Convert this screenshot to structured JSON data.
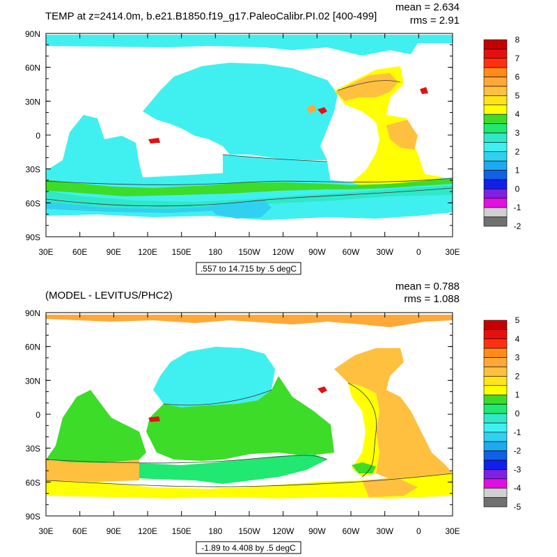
{
  "panels": [
    {
      "title": "TEMP at z=2414.0m, b.e21.B1850.f19_g17.PaleoCalibr.PI.02 [400-499]",
      "mean_text": "mean = 2.634",
      "rms_text": "rms = 2.91",
      "range_label": ".557 to 14.715 by .5 degC",
      "lat_labels": [
        "90N",
        "60N",
        "30N",
        "0",
        "30S",
        "60S",
        "90S"
      ],
      "lon_labels": [
        "30E",
        "60E",
        "90E",
        "120E",
        "150E",
        "180",
        "150W",
        "120W",
        "90W",
        "60W",
        "30W",
        "0",
        "30E"
      ],
      "colorbar_labels": [
        "8",
        "7",
        "6",
        "5",
        "4",
        "3",
        "2",
        "1",
        "0",
        "-1",
        "-2"
      ],
      "colorbar_colors": [
        "#c40000",
        "#e41010",
        "#ff3010",
        "#ff8c18",
        "#ffa838",
        "#ffc040",
        "#ffe41c",
        "#ffff00",
        "#3cdc28",
        "#20e870",
        "#30e8c8",
        "#40f0f0",
        "#30d0f0",
        "#20a8f0",
        "#1060e8",
        "#1020e8",
        "#8020e0",
        "#e010e0",
        "#d0d0d0",
        "#707070"
      ]
    },
    {
      "title": "(MODEL - LEVITUS/PHC2)",
      "mean_text": "mean = 0.788",
      "rms_text": "rms = 1.088",
      "range_label": "-1.89 to 4.408 by .5 degC",
      "lat_labels": [
        "90N",
        "60N",
        "30N",
        "0",
        "30S",
        "60S",
        "90S"
      ],
      "lon_labels": [
        "30E",
        "60E",
        "90E",
        "120E",
        "150E",
        "180",
        "150W",
        "120W",
        "90W",
        "60W",
        "30W",
        "0",
        "30E"
      ],
      "colorbar_labels": [
        "5",
        "4",
        "3",
        "2",
        "1",
        "0",
        "-1",
        "-2",
        "-3",
        "-4",
        "-5"
      ],
      "colorbar_colors": [
        "#c40000",
        "#e41010",
        "#ff3010",
        "#ff8c18",
        "#ffa838",
        "#ffc040",
        "#ffe41c",
        "#ffff00",
        "#3cdc28",
        "#20e870",
        "#30e8c8",
        "#40f0f0",
        "#30d0f0",
        "#20a8f0",
        "#1060e8",
        "#1020e8",
        "#8020e0",
        "#e010e0",
        "#d0d0d0",
        "#707070"
      ]
    }
  ]
}
